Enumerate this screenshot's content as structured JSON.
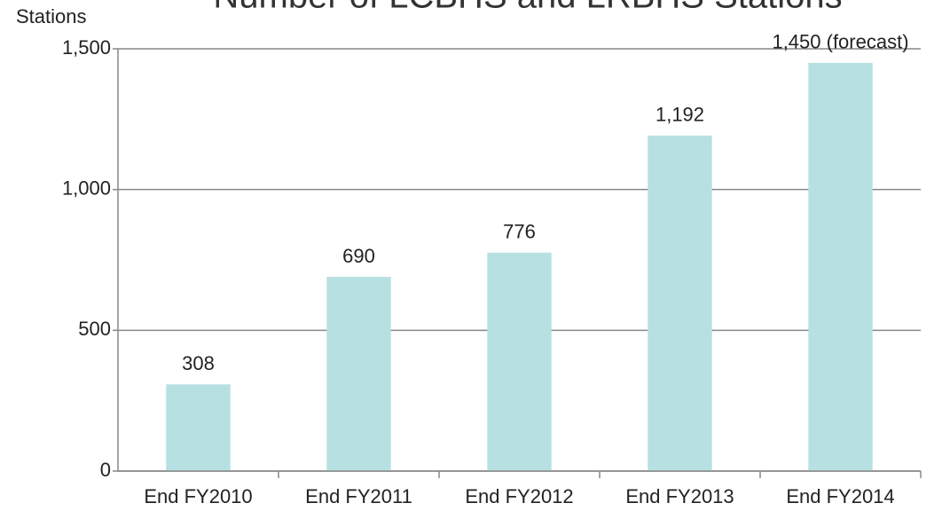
{
  "chart_data": {
    "type": "bar",
    "title": "Number of LCBHS and LRBHS Stations",
    "y_label": "Stations",
    "categories": [
      "End FY2010",
      "End FY2011",
      "End FY2012",
      "End FY2013",
      "End FY2014"
    ],
    "values": [
      308,
      690,
      776,
      1192,
      1450
    ],
    "value_labels": [
      "308",
      "690",
      "776",
      "1,192",
      "1,450 (forecast)"
    ],
    "color": "#b7e0e2",
    "ylim": [
      0,
      1500
    ],
    "yticks": [
      0,
      500,
      {
        "value": 1000,
        "label": "1,000"
      },
      {
        "value": 1500,
        "label": "1,500"
      }
    ],
    "grid": true
  }
}
